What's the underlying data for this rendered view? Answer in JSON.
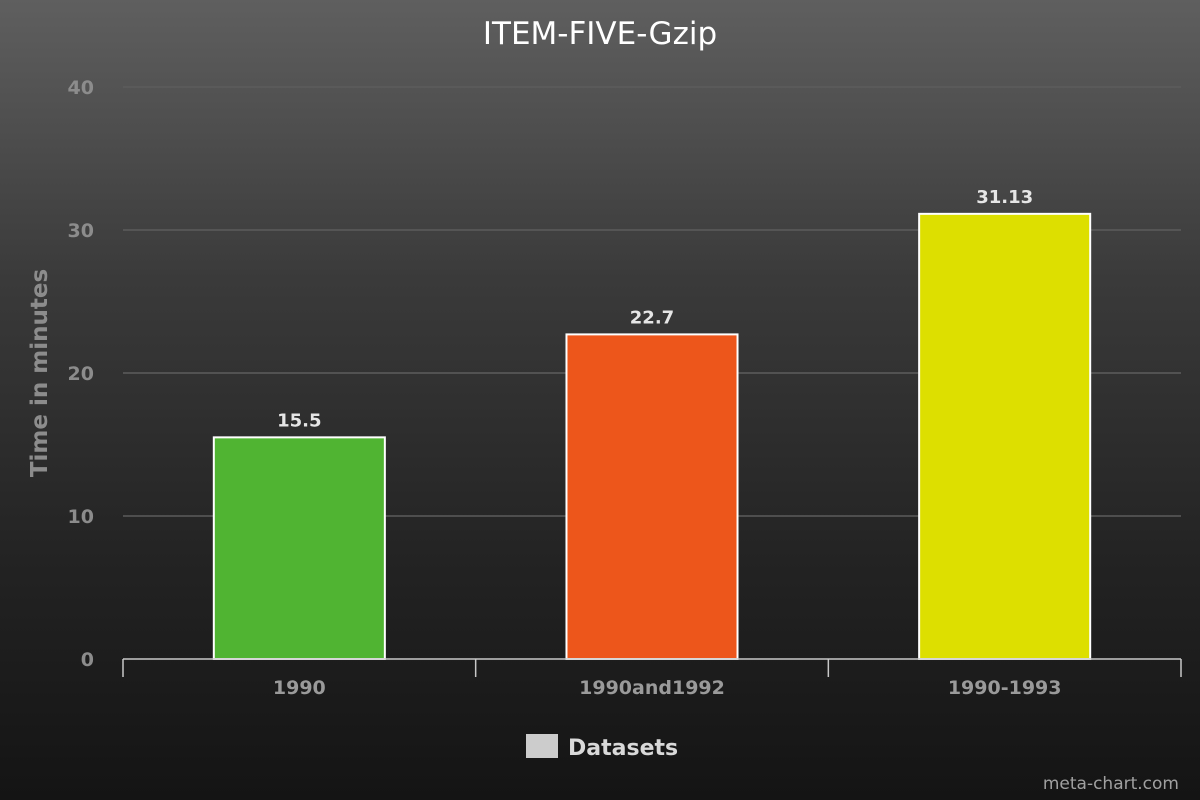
{
  "chart_data": {
    "type": "bar",
    "title": "ITEM-FIVE-Gzip",
    "ylabel": "Time in minutes",
    "xlabel": "",
    "categories": [
      "1990",
      "1990and1992",
      "1990-1993"
    ],
    "values": [
      15.5,
      22.7,
      31.13
    ],
    "value_labels": [
      "15.5",
      "22.7",
      "31.13"
    ],
    "bar_colors": [
      "#50b432",
      "#ed561b",
      "#dddf00"
    ],
    "ylim": [
      0,
      40
    ],
    "yticks": [
      0,
      10,
      20,
      30,
      40
    ],
    "grid": true,
    "legend": {
      "label": "Datasets",
      "swatch_color": "#cccccc",
      "position": "bottom-center"
    }
  },
  "credit": "meta-chart.com"
}
